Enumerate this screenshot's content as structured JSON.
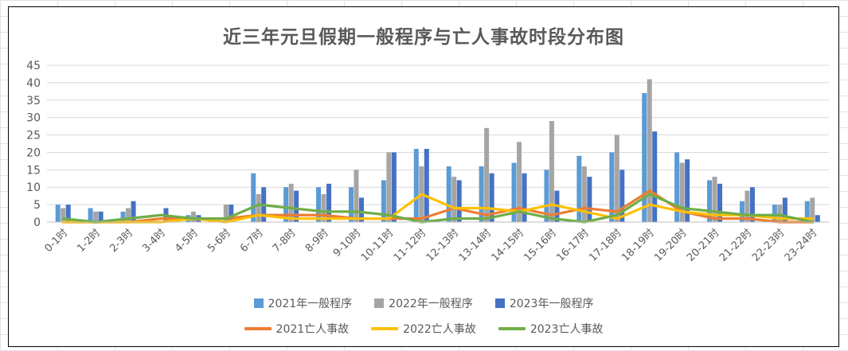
{
  "chart_data": {
    "type": "bar",
    "title": "近三年元旦假期一般程序与亡人事故时段分布图",
    "categories": [
      "0-1时",
      "1-2时",
      "2-3时",
      "3-4时",
      "4-5时",
      "5-6时",
      "6-7时",
      "7-8时",
      "8-9时",
      "9-10时",
      "10-11时",
      "11-12时",
      "12-13时",
      "13-14时",
      "14-15时",
      "15-16时",
      "16-17时",
      "17-18时",
      "18-19时",
      "19-20时",
      "20-21时",
      "21-22时",
      "22-23时",
      "23-24时"
    ],
    "ylim": [
      0,
      45
    ],
    "yticks": [
      0,
      5,
      10,
      15,
      20,
      25,
      30,
      35,
      40,
      45
    ],
    "xlabel": "",
    "ylabel": "",
    "grid": true,
    "legend_position": "bottom",
    "series": [
      {
        "name": "2021年一般程序",
        "kind": "bar",
        "color": "#5B9BD5",
        "values": [
          5,
          4,
          3,
          0,
          2,
          0,
          14,
          10,
          10,
          10,
          12,
          21,
          16,
          16,
          17,
          15,
          19,
          20,
          37,
          20,
          12,
          6,
          5,
          6
        ]
      },
      {
        "name": "2022年一般程序",
        "kind": "bar",
        "color": "#A5A5A5",
        "values": [
          4,
          3,
          4,
          0,
          3,
          5,
          8,
          11,
          8,
          15,
          20,
          16,
          13,
          27,
          23,
          29,
          16,
          25,
          41,
          17,
          13,
          9,
          5,
          7
        ]
      },
      {
        "name": "2023年一般程序",
        "kind": "bar",
        "color": "#4472C4",
        "values": [
          5,
          3,
          6,
          4,
          2,
          5,
          10,
          9,
          11,
          7,
          20,
          21,
          12,
          14,
          14,
          9,
          13,
          15,
          26,
          18,
          11,
          10,
          7,
          2
        ]
      },
      {
        "name": "2021亡人事故",
        "kind": "line",
        "color": "#ED7D31",
        "values": [
          0,
          0,
          0,
          1,
          1,
          1,
          2,
          2,
          2,
          1,
          1,
          1,
          4,
          2,
          4,
          2,
          4,
          3,
          9,
          3,
          1,
          1,
          0,
          0
        ]
      },
      {
        "name": "2022亡人事故",
        "kind": "line",
        "color": "#FFC000",
        "values": [
          0,
          0,
          0,
          0,
          1,
          0,
          2,
          1,
          1,
          1,
          1,
          8,
          4,
          4,
          3,
          5,
          3,
          1,
          5,
          3,
          2,
          2,
          1,
          1
        ]
      },
      {
        "name": "2023亡人事故",
        "kind": "line",
        "color": "#70AD47",
        "values": [
          1,
          0,
          1,
          2,
          1,
          1,
          5,
          4,
          3,
          3,
          2,
          0,
          1,
          1,
          3,
          1,
          0,
          2,
          8,
          4,
          3,
          2,
          2,
          0
        ]
      }
    ]
  }
}
